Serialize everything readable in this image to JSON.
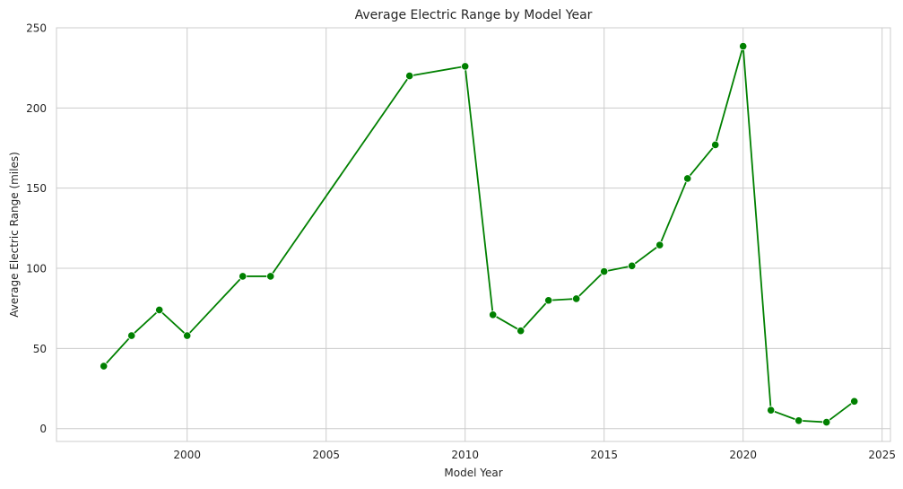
{
  "chart_data": {
    "type": "line",
    "title": "Average Electric Range by Model Year",
    "xlabel": "Model Year",
    "ylabel": "Average Electric Range (miles)",
    "xlim": [
      1995.3,
      2025.3
    ],
    "ylim": [
      -8,
      250
    ],
    "xticks": [
      2000,
      2005,
      2010,
      2015,
      2020,
      2025
    ],
    "yticks": [
      0,
      50,
      100,
      150,
      200,
      250
    ],
    "grid": true,
    "series": [
      {
        "color": "#008000",
        "marker": "circle",
        "x": [
          1997,
          1998,
          1999,
          2000,
          2002,
          2003,
          2008,
          2010,
          2011,
          2012,
          2013,
          2014,
          2015,
          2016,
          2017,
          2018,
          2019,
          2020,
          2021,
          2022,
          2023,
          2024
        ],
        "y": [
          39,
          58,
          74,
          58,
          95,
          95,
          220,
          226,
          71,
          61,
          80,
          81,
          98,
          101.5,
          114.5,
          156,
          177,
          238.5,
          11.5,
          5,
          4,
          17
        ]
      }
    ]
  }
}
